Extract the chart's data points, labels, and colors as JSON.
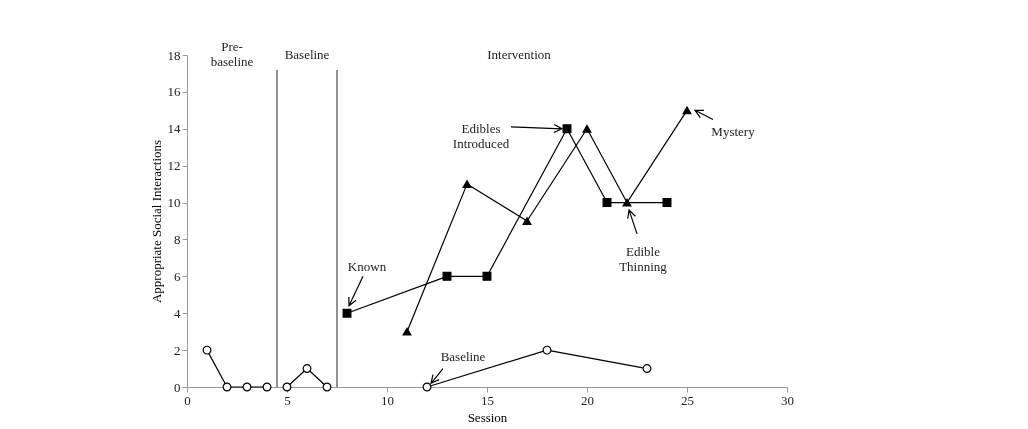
{
  "chart_data": {
    "type": "line",
    "xlabel": "Session",
    "ylabel": "Appropriate Social Interactions",
    "xlim": [
      0,
      30
    ],
    "xticks": [
      0,
      5,
      10,
      15,
      20,
      25,
      30
    ],
    "ylim": [
      0,
      18
    ],
    "yticks": [
      0,
      2,
      4,
      6,
      8,
      10,
      12,
      14,
      16,
      18
    ],
    "grid": false,
    "series": [
      {
        "name": "Baseline",
        "color": "#000000",
        "marker": "circle",
        "x": [
          1,
          2,
          3,
          4,
          5,
          6,
          7,
          12,
          18,
          23
        ],
        "values": [
          2,
          0,
          0,
          0,
          0,
          1,
          0,
          0,
          2,
          1
        ]
      },
      {
        "name": "Known",
        "color": "#000000",
        "marker": "square",
        "x": [
          8,
          13,
          15,
          19,
          21,
          24
        ],
        "values": [
          4,
          6,
          6,
          14,
          10,
          10
        ]
      },
      {
        "name": "Mystery",
        "color": "#000000",
        "marker": "triangle",
        "x": [
          11,
          14,
          17,
          20,
          22,
          25
        ],
        "values": [
          3,
          11,
          9,
          14,
          10,
          15
        ]
      }
    ],
    "ref_lines": [
      {
        "axis": "x",
        "value": 4.5,
        "color": "#555555"
      },
      {
        "axis": "x",
        "value": 7.5,
        "color": "#555555"
      }
    ],
    "annotations": [
      "Pre-baseline",
      "Baseline",
      "Intervention",
      "Edibles Introduced",
      "Edible Thinning"
    ]
  }
}
